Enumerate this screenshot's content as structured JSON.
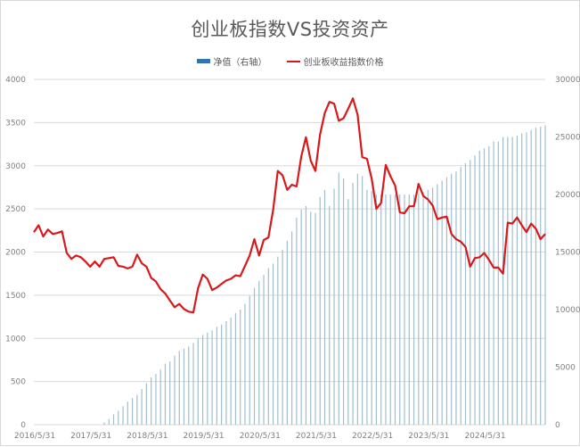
{
  "title": "创业板指数VS投资资产",
  "legend": [
    {
      "label": "净值（右轴）",
      "type": "bar",
      "color": "#2e75b6"
    },
    {
      "label": "创业板收益指数价格",
      "type": "line",
      "color": "#d7191c"
    }
  ],
  "colors": {
    "bar": "#9fbfcf",
    "line": "#d7191c",
    "grid": "#d9d9d9",
    "axis_text": "#7f7f7f",
    "title": "#595959"
  },
  "chart_data": {
    "type": "bar+line",
    "title": "创业板指数VS投资资产",
    "x_tick_labels": [
      "2016/5/31",
      "2017/5/31",
      "2018/5/31",
      "2019/5/31",
      "2020/5/31",
      "2021/5/31",
      "2022/5/31",
      "2023/5/31",
      "2024/5/31"
    ],
    "left_axis": {
      "label": "创业板收益指数价格",
      "ylim": [
        0,
        4000
      ],
      "ticks": [
        0,
        500,
        1000,
        1500,
        2000,
        2500,
        3000,
        3500,
        4000
      ]
    },
    "right_axis": {
      "label": "净值（右轴）",
      "ylim": [
        0,
        30000
      ],
      "ticks": [
        0,
        5000,
        10000,
        15000,
        20000,
        25000,
        30000
      ]
    },
    "grid": true,
    "legend_position": "top",
    "frequency": "monthly",
    "start": "2016/5/31",
    "series": [
      {
        "name": "创业板收益指数价格",
        "type": "line",
        "axis": "left",
        "values": [
          2230,
          2310,
          2180,
          2260,
          2210,
          2220,
          2240,
          1990,
          1920,
          1960,
          1940,
          1890,
          1830,
          1890,
          1830,
          1920,
          1930,
          1940,
          1840,
          1830,
          1810,
          1830,
          1970,
          1870,
          1830,
          1700,
          1660,
          1570,
          1520,
          1440,
          1360,
          1400,
          1340,
          1310,
          1300,
          1580,
          1740,
          1690,
          1560,
          1590,
          1630,
          1670,
          1690,
          1730,
          1720,
          1840,
          1960,
          2150,
          1960,
          2140,
          2170,
          2490,
          2940,
          2890,
          2720,
          2780,
          2760,
          3110,
          3330,
          3060,
          2940,
          3360,
          3610,
          3740,
          3720,
          3520,
          3550,
          3660,
          3780,
          3590,
          3100,
          3080,
          2850,
          2500,
          2570,
          3010,
          2880,
          2770,
          2460,
          2450,
          2530,
          2530,
          2790,
          2650,
          2610,
          2540,
          2380,
          2400,
          2410,
          2210,
          2150,
          2120,
          2060,
          1830,
          1930,
          1940,
          1990,
          1910,
          1820,
          1820,
          1750,
          2340,
          2330,
          2400,
          2310,
          2230,
          2330,
          2270,
          2150,
          2210
        ],
        "note": "Monthly values estimated from pixel positions; approximate"
      },
      {
        "name": "净值（右轴）",
        "type": "bar",
        "axis": "right",
        "values": [
          0,
          0,
          0,
          0,
          0,
          0,
          0,
          0,
          0,
          0,
          0,
          0,
          0,
          0,
          0,
          200,
          500,
          900,
          1200,
          1600,
          2000,
          2300,
          2600,
          3100,
          3600,
          4100,
          4400,
          4800,
          5300,
          5500,
          6000,
          6400,
          6600,
          6800,
          7100,
          7500,
          7800,
          8000,
          8200,
          8500,
          8700,
          9000,
          9300,
          9700,
          10000,
          10500,
          11200,
          11900,
          12500,
          13000,
          13600,
          14000,
          14600,
          15200,
          16000,
          16800,
          18000,
          18700,
          19000,
          18500,
          18400,
          19800,
          20400,
          19000,
          20500,
          21900,
          21400,
          19600,
          21000,
          21800,
          21600,
          20400,
          20300,
          20000,
          20000,
          20000,
          20000,
          20000,
          20000,
          20000,
          20000,
          20000,
          20100,
          20200,
          20400,
          20600,
          20900,
          21200,
          21500,
          21800,
          22000,
          22400,
          22700,
          23000,
          23400,
          23800,
          24000,
          24200,
          24600,
          24600,
          25000,
          25000,
          25000,
          25100,
          25300,
          25400,
          25600,
          25800,
          25900,
          26000
        ],
        "note": "Monthly values estimated from pixel positions; approximate"
      }
    ]
  }
}
